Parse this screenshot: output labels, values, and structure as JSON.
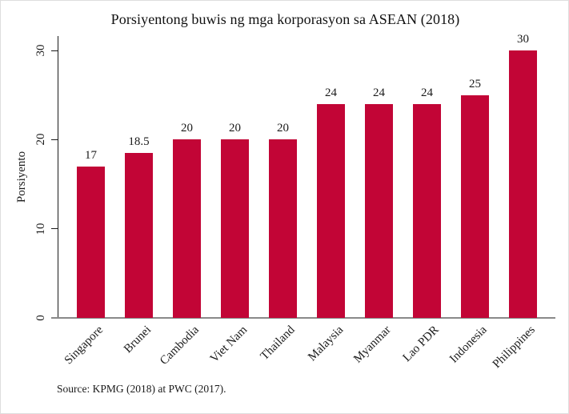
{
  "title": "Porsiyentong buwis ng mga korporasyon sa ASEAN (2018)",
  "source_note": "Source: KPMG (2018) at PWC (2017).",
  "colors": {
    "bar": "#C20536",
    "axis": "#1a1a1a",
    "baseline": "#8a8a8a",
    "text": "#1a1a1a",
    "background": "#ffffff"
  },
  "chart_data": {
    "type": "bar",
    "title": "Porsiyentong buwis ng mga korporasyon sa ASEAN (2018)",
    "categories": [
      "Singapore",
      "Brunei",
      "Cambodia",
      "Viet Nam",
      "Thailand",
      "Malaysia",
      "Myanmar",
      "Lao PDR",
      "Indonesia",
      "Philippines"
    ],
    "values": [
      17,
      18.5,
      20,
      20,
      20,
      24,
      24,
      24,
      25,
      30
    ],
    "value_labels": [
      "17",
      "18.5",
      "20",
      "20",
      "20",
      "24",
      "24",
      "24",
      "25",
      "30"
    ],
    "xlabel": "",
    "ylabel": "Porsiyento",
    "ylim": [
      0,
      30
    ],
    "yticks": [
      0,
      10,
      20,
      30
    ],
    "grid": false,
    "legend": "none",
    "bar_color": "#C20536",
    "x_tick_label_angle_deg": 45,
    "y_tick_label_angle_deg": 90,
    "source": "Source: KPMG (2018) at PWC (2017)."
  }
}
